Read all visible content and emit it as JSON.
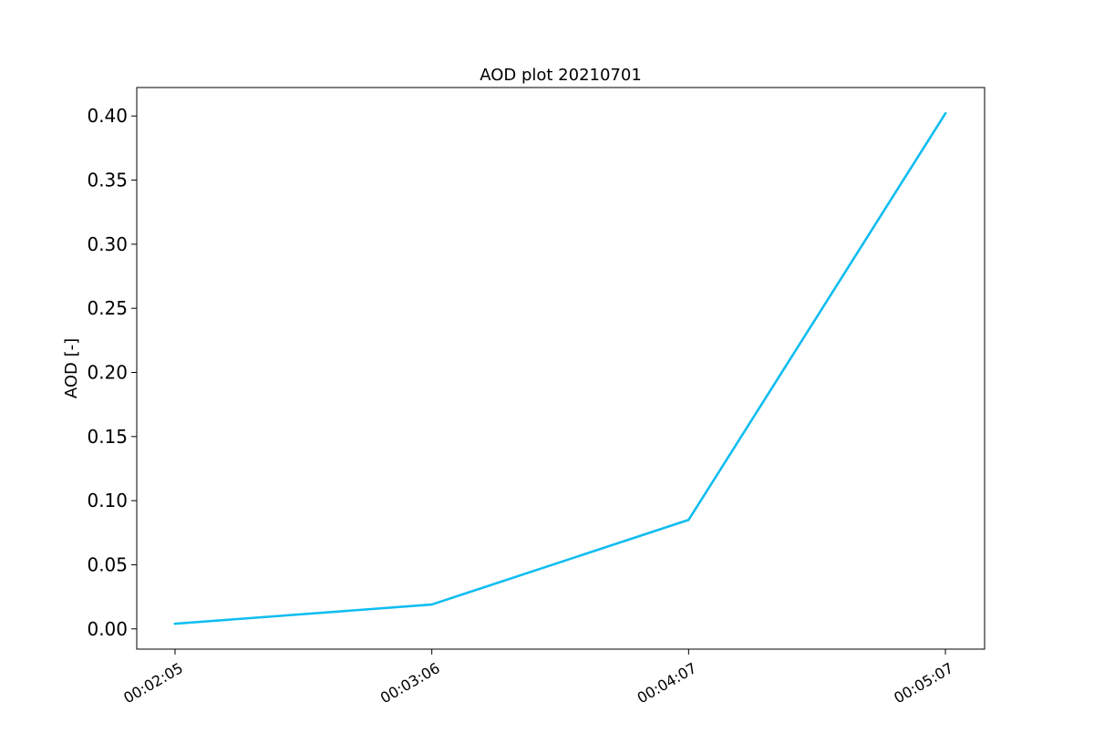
{
  "chart_data": {
    "type": "line",
    "title": "AOD plot 20210701",
    "xlabel": "",
    "ylabel": "AOD [-]",
    "categories": [
      "00:02:05",
      "00:03:06",
      "00:04:07",
      "00:05:07"
    ],
    "series": [
      {
        "values": [
          0.004,
          0.019,
          0.085,
          0.402
        ],
        "color": "#10bdf0"
      }
    ],
    "ylim": [
      -0.0158,
      0.4222
    ],
    "yticks": [
      0.0,
      0.05,
      0.1,
      0.15,
      0.2,
      0.25,
      0.3,
      0.35,
      0.4
    ],
    "ytick_labels": [
      "0.00",
      "0.05",
      "0.10",
      "0.15",
      "0.20",
      "0.25",
      "0.30",
      "0.35",
      "0.40"
    ],
    "grid": false,
    "legend": "none"
  }
}
